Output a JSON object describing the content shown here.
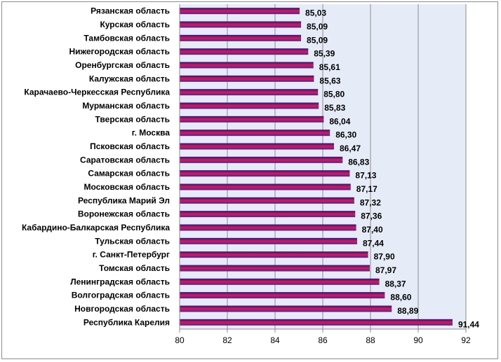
{
  "chart_data": {
    "type": "bar",
    "orientation": "horizontal",
    "categories": [
      "Рязанская область",
      "Курская область",
      "Тамбовская область",
      "Нижегородская область",
      "Оренбургская область",
      "Калужская область",
      "Карачаево-Черкесская Республика",
      "Мурманская область",
      "Тверская область",
      "г. Москва",
      "Псковская область",
      "Саратовская область",
      "Самарская область",
      "Московская область",
      "Республика Марий Эл",
      "Воронежская область",
      "Кабардино-Балкарская Республика",
      "Тульская область",
      "г. Санкт-Петербург",
      "Томская область",
      "Ленинградская область",
      "Волгоградская область",
      "Новгородская область",
      "Республика Карелия"
    ],
    "values": [
      85.03,
      85.09,
      85.09,
      85.39,
      85.61,
      85.63,
      85.8,
      85.83,
      86.04,
      86.3,
      86.47,
      86.83,
      87.13,
      87.17,
      87.32,
      87.36,
      87.4,
      87.44,
      87.9,
      87.97,
      88.37,
      88.6,
      88.89,
      91.44
    ],
    "value_labels": [
      "85,03",
      "85,09",
      "85,09",
      "85,39",
      "85,61",
      "85,63",
      "85,80",
      "85,83",
      "86,04",
      "86,30",
      "86,47",
      "86,83",
      "87,13",
      "87,17",
      "87,32",
      "87,36",
      "87,40",
      "87,44",
      "87,90",
      "87,97",
      "88,37",
      "88,60",
      "88,89",
      "91,44"
    ],
    "xlim": [
      80,
      92
    ],
    "x_ticks": [
      80,
      82,
      84,
      86,
      88,
      90,
      92
    ],
    "grid": "vertical",
    "title": "",
    "xlabel": "",
    "ylabel": "",
    "colors": {
      "bar_top": "#1a1a8c",
      "bar_mid": "#d4145a",
      "bar_bottom": "#3a2a9c",
      "plot_background": "#e6ecf7",
      "gridline": "#8c8c8c"
    }
  }
}
